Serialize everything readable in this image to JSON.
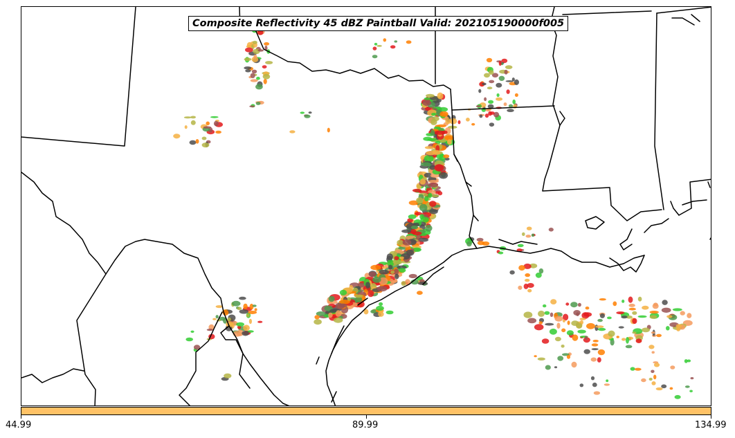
{
  "title": "Composite Reflectivity 45 dBZ Paintball Valid: 202105190000f005",
  "colorbar": {
    "color": "#FFC266",
    "ticks": [
      "44.99",
      "89.99",
      "134.99"
    ]
  },
  "palette": [
    "#E31A1C",
    "#FF7F00",
    "#33CC33",
    "#4D4D4D",
    "#9A5252",
    "#B5B545",
    "#F59B5E",
    "#4E9A4E",
    "#F5B042"
  ]
}
